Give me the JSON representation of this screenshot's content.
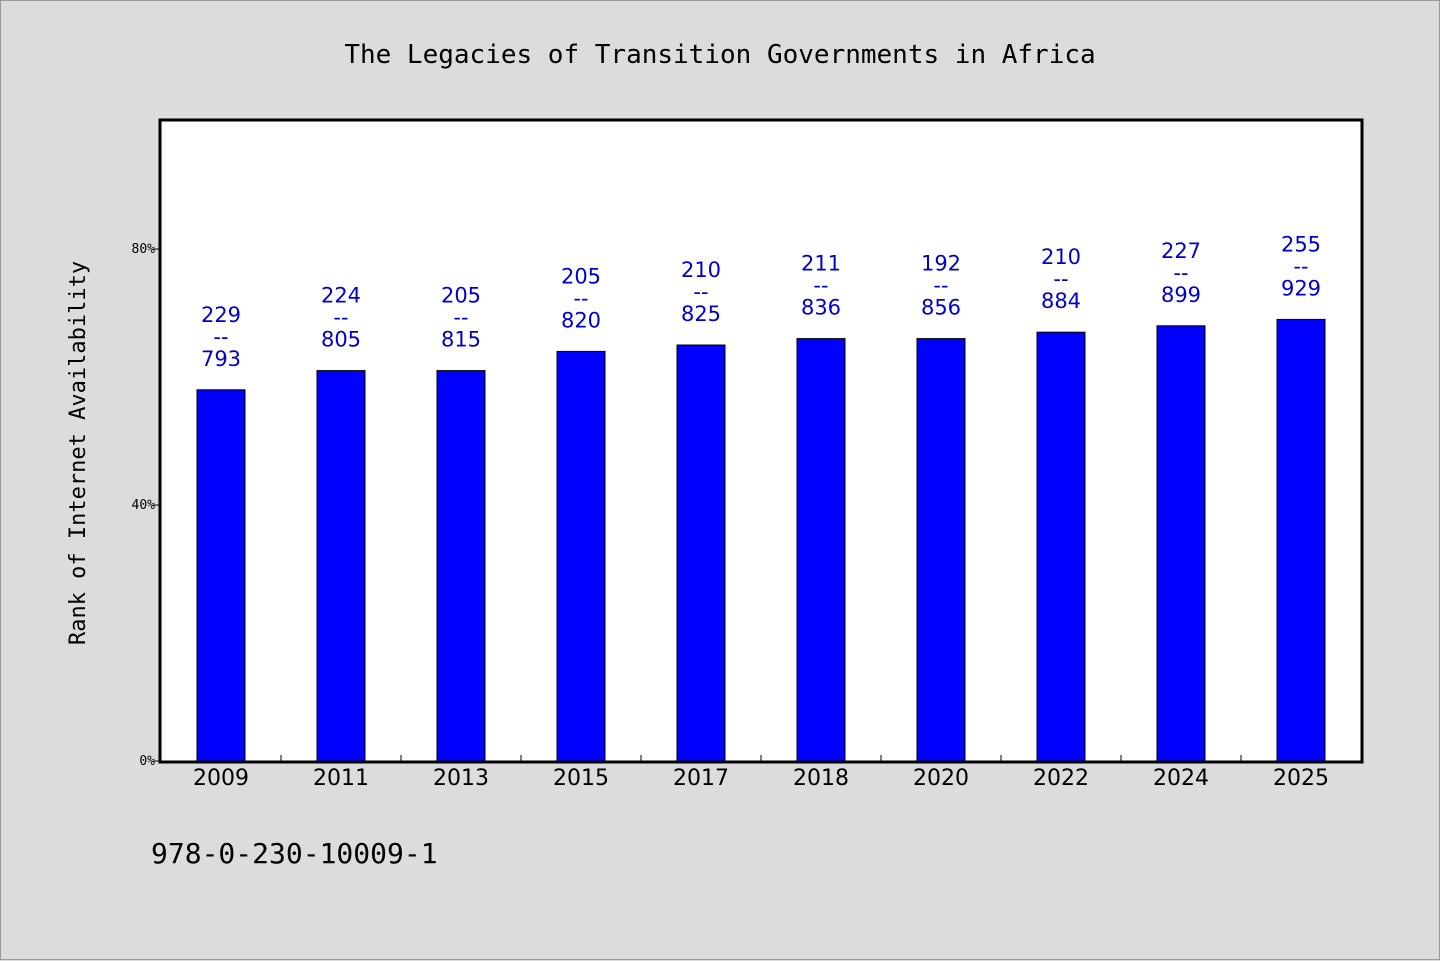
{
  "chart_data": {
    "type": "bar",
    "title": "The Legacies of Transition Governments in Africa",
    "ylabel": "Rank of Internet Availability",
    "xlabel": "",
    "ylim": [
      0,
      100
    ],
    "yticks": [
      0,
      40,
      80
    ],
    "ytick_labels": [
      "0%",
      "40%",
      "80%"
    ],
    "categories": [
      "2009",
      "2011",
      "2013",
      "2015",
      "2017",
      "2018",
      "2020",
      "2022",
      "2024",
      "2025"
    ],
    "values": [
      58,
      61,
      61,
      64,
      65,
      66,
      66,
      67,
      68,
      69
    ],
    "data_labels": [
      {
        "top": "229",
        "sep": "--",
        "bottom": "793"
      },
      {
        "top": "224",
        "sep": "--",
        "bottom": "805"
      },
      {
        "top": "205",
        "sep": "--",
        "bottom": "815"
      },
      {
        "top": "205",
        "sep": "--",
        "bottom": "820"
      },
      {
        "top": "210",
        "sep": "--",
        "bottom": "825"
      },
      {
        "top": "211",
        "sep": "--",
        "bottom": "836"
      },
      {
        "top": "192",
        "sep": "--",
        "bottom": "856"
      },
      {
        "top": "210",
        "sep": "--",
        "bottom": "884"
      },
      {
        "top": "227",
        "sep": "--",
        "bottom": "899"
      },
      {
        "top": "255",
        "sep": "--",
        "bottom": "929"
      }
    ],
    "grid": false,
    "bar_color": "#0000ff",
    "label_color": "#0000cc"
  },
  "footer": {
    "isbn": "978-0-230-10009-1"
  }
}
